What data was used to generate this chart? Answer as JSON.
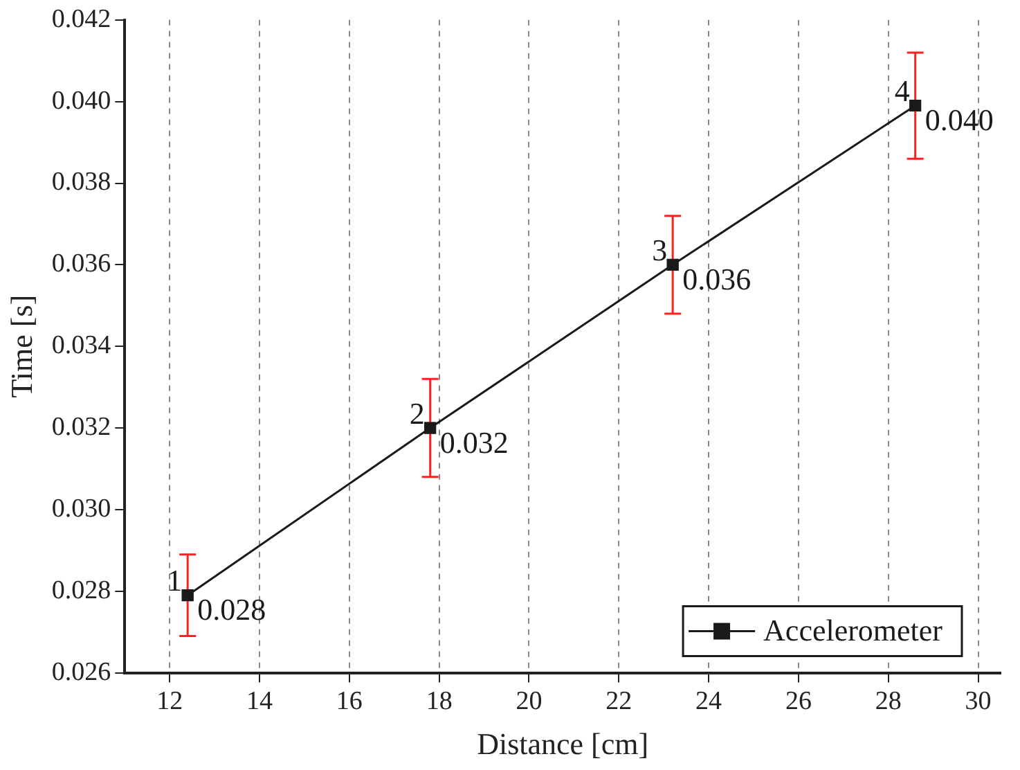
{
  "chart_data": {
    "type": "line",
    "xlabel": "Distance [cm]",
    "ylabel": "Time [s]",
    "x": [
      12.4,
      17.8,
      23.2,
      28.6
    ],
    "series": [
      {
        "name": "Accelerometer",
        "color": "#1a1a1a",
        "values": [
          0.0279,
          0.032,
          0.036,
          0.0399
        ],
        "errors": [
          0.001,
          0.0012,
          0.0012,
          0.0013
        ],
        "value_labels": [
          "0.028",
          "0.032",
          "0.036",
          "0.040"
        ]
      }
    ],
    "xlim": [
      11,
      30.5
    ],
    "xticks": [
      12,
      14,
      16,
      18,
      20,
      22,
      24,
      26,
      28,
      30
    ],
    "ylim": [
      0.026,
      0.042
    ],
    "yticks": [
      0.026,
      0.028,
      {
        "value": 0.03,
        "label": "0.030"
      },
      0.032,
      0.034,
      0.036,
      0.038,
      {
        "value": 0.04,
        "label": "0.040"
      },
      0.042
    ],
    "annotations": [
      {
        "text": "1",
        "x": 12.4,
        "y": 0.0279
      },
      {
        "text": "2",
        "x": 17.8,
        "y": 0.032
      },
      {
        "text": "3",
        "x": 23.2,
        "y": 0.036
      },
      {
        "text": "4",
        "x": 28.6,
        "y": 0.0399
      }
    ],
    "grid": "x",
    "legend": "bottom right",
    "marker": "square",
    "line_style": "solid"
  }
}
